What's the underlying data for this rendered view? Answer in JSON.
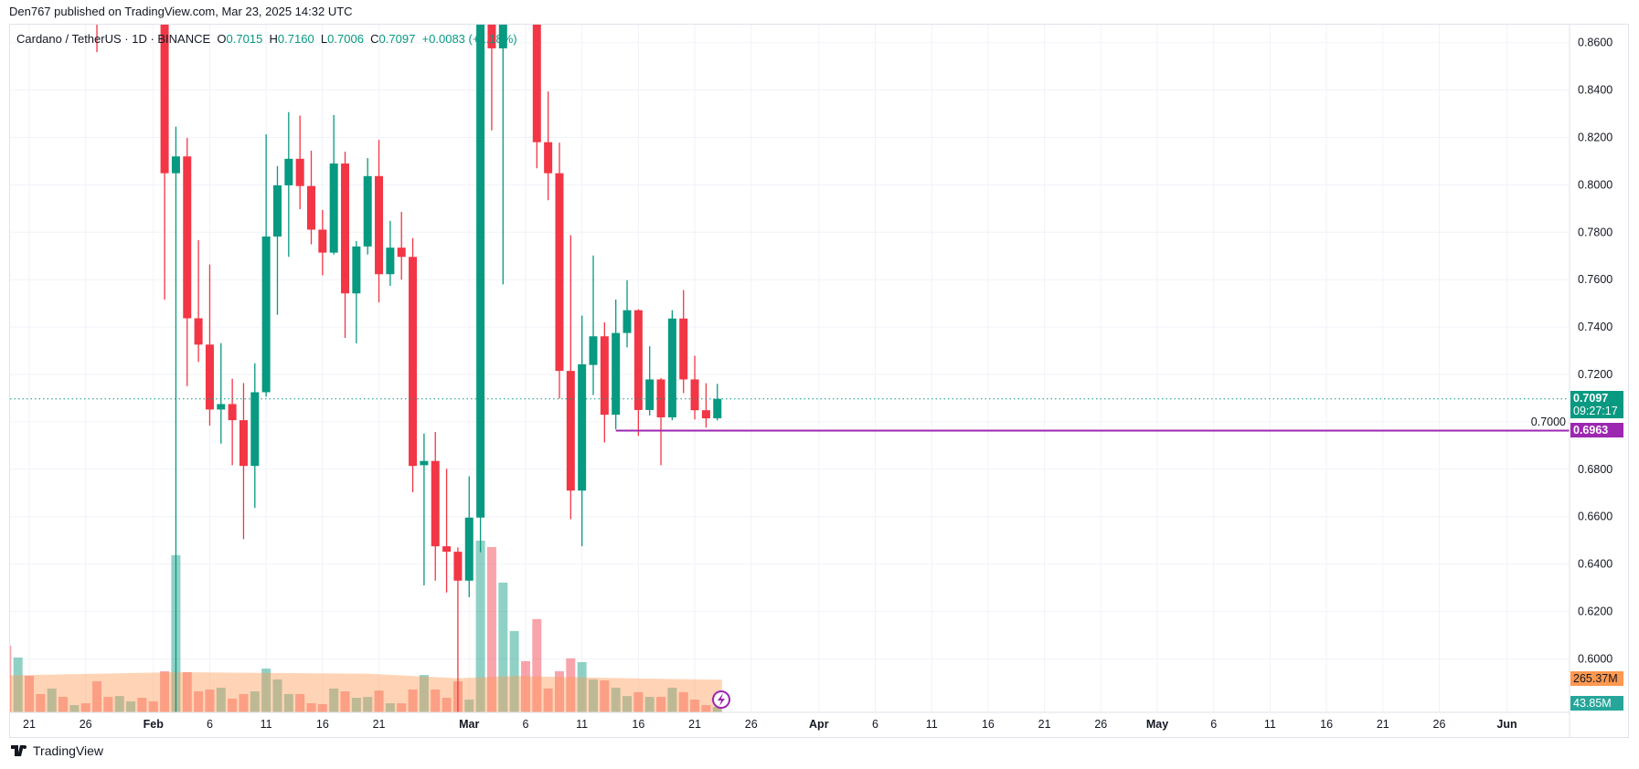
{
  "published": "Den767 published on TradingView.com, Mar 23, 2025 14:32 UTC",
  "legend": {
    "symbol": "Cardano / TetherUS · 1D · BINANCE",
    "o_label": "O",
    "o": "0.7015",
    "h_label": "H",
    "h": "0.7160",
    "l_label": "L",
    "l": "0.7006",
    "c_label": "C",
    "c": "0.7097",
    "change": "+0.0083 (+1.18%)"
  },
  "price_labels": {
    "last": "0.7097",
    "countdown": "09:27:17",
    "level": "0.6963",
    "volume_ma": "265.37M",
    "volume": "43.85M"
  },
  "footer": {
    "brand": "TradingView"
  },
  "colors": {
    "up": "#089981",
    "down": "#F23645",
    "level_line": "#9C27B0",
    "volume_ma": "#FF9850",
    "grid": "#F0F3FA"
  },
  "chart_data": {
    "type": "candlestick",
    "symbol": "ADAUSDT",
    "interval": "1D",
    "ylim": [
      0.577,
      0.868
    ],
    "grid": true,
    "y_ticks": [
      "0.6000",
      "0.6200",
      "0.6400",
      "0.6600",
      "0.6800",
      "0.7000",
      "0.7200",
      "0.7400",
      "0.7600",
      "0.7800",
      "0.8000",
      "0.8200",
      "0.8400",
      "0.8600"
    ],
    "x_ticks": [
      {
        "date": "2025-01-21",
        "label": "21"
      },
      {
        "date": "2025-01-26",
        "label": "26"
      },
      {
        "date": "2025-02-01",
        "label": "Feb",
        "major": true
      },
      {
        "date": "2025-02-06",
        "label": "6"
      },
      {
        "date": "2025-02-11",
        "label": "11"
      },
      {
        "date": "2025-02-16",
        "label": "16"
      },
      {
        "date": "2025-02-21",
        "label": "21"
      },
      {
        "date": "2025-03-01",
        "label": "Mar",
        "major": true
      },
      {
        "date": "2025-03-06",
        "label": "6"
      },
      {
        "date": "2025-03-11",
        "label": "11"
      },
      {
        "date": "2025-03-16",
        "label": "16"
      },
      {
        "date": "2025-03-21",
        "label": "21"
      },
      {
        "date": "2025-03-26",
        "label": "26"
      },
      {
        "date": "2025-04-01",
        "label": "Apr",
        "major": true
      },
      {
        "date": "2025-04-06",
        "label": "6"
      },
      {
        "date": "2025-04-11",
        "label": "11"
      },
      {
        "date": "2025-04-16",
        "label": "16"
      },
      {
        "date": "2025-04-21",
        "label": "21"
      },
      {
        "date": "2025-04-26",
        "label": "26"
      },
      {
        "date": "2025-05-01",
        "label": "May",
        "major": true
      },
      {
        "date": "2025-05-06",
        "label": "6"
      },
      {
        "date": "2025-05-11",
        "label": "11"
      },
      {
        "date": "2025-05-16",
        "label": "16"
      },
      {
        "date": "2025-05-21",
        "label": "21"
      },
      {
        "date": "2025-05-26",
        "label": "26"
      },
      {
        "date": "2025-06-01",
        "label": "Jun",
        "major": true
      }
    ],
    "candle_fields": [
      "date",
      "open",
      "high",
      "low",
      "close",
      "volume_M",
      "direction"
    ],
    "candles": [
      [
        "2025-01-19",
        null,
        null,
        null,
        null,
        543,
        "down"
      ],
      [
        "2025-01-20",
        null,
        null,
        null,
        null,
        446,
        "up"
      ],
      [
        "2025-01-21",
        null,
        null,
        null,
        null,
        297,
        "down"
      ],
      [
        "2025-01-22",
        null,
        null,
        null,
        null,
        149,
        "down"
      ],
      [
        "2025-01-23",
        null,
        null,
        null,
        null,
        194,
        "up"
      ],
      [
        "2025-01-24",
        null,
        null,
        null,
        null,
        126,
        "down"
      ],
      [
        "2025-01-25",
        null,
        null,
        null,
        null,
        59,
        "up"
      ],
      [
        "2025-01-26",
        null,
        null,
        null,
        null,
        74,
        "down"
      ],
      [
        "2025-01-27",
        null,
        null,
        0.856,
        null,
        253,
        "down"
      ],
      [
        "2025-01-28",
        null,
        null,
        null,
        null,
        126,
        "down"
      ],
      [
        "2025-01-29",
        null,
        null,
        null,
        null,
        133,
        "up"
      ],
      [
        "2025-01-30",
        null,
        null,
        null,
        null,
        90,
        "up"
      ],
      [
        "2025-01-31",
        null,
        null,
        null,
        null,
        119,
        "down"
      ],
      [
        "2025-02-01",
        null,
        null,
        null,
        null,
        90,
        "down"
      ],
      [
        "2025-02-02",
        null,
        null,
        0.7516,
        0.8049,
        335,
        "down"
      ],
      [
        "2025-02-03",
        0.8049,
        0.8246,
        0.577,
        0.812,
        1279,
        "up"
      ],
      [
        "2025-02-04",
        0.812,
        0.8198,
        0.7151,
        0.7437,
        327,
        "down"
      ],
      [
        "2025-02-05",
        0.7437,
        0.7767,
        0.7253,
        0.7326,
        171,
        "down"
      ],
      [
        "2025-02-06",
        0.7326,
        0.7664,
        0.6984,
        0.7052,
        186,
        "down"
      ],
      [
        "2025-02-07",
        0.7052,
        0.7332,
        0.6908,
        0.7075,
        201,
        "up"
      ],
      [
        "2025-02-08",
        0.7075,
        0.7182,
        0.6817,
        0.7007,
        112,
        "down"
      ],
      [
        "2025-02-09",
        0.7007,
        0.7164,
        0.6505,
        0.6814,
        149,
        "down"
      ],
      [
        "2025-02-10",
        0.6814,
        0.7247,
        0.6637,
        0.7125,
        171,
        "up"
      ],
      [
        "2025-02-11",
        0.7125,
        0.8213,
        0.7106,
        0.7782,
        356,
        "up"
      ],
      [
        "2025-02-12",
        0.7782,
        0.8079,
        0.7452,
        0.7998,
        268,
        "up"
      ],
      [
        "2025-02-13",
        0.7998,
        0.8307,
        0.7696,
        0.811,
        149,
        "up"
      ],
      [
        "2025-02-14",
        0.811,
        0.8292,
        0.7897,
        0.7995,
        149,
        "down"
      ],
      [
        "2025-02-15",
        0.7995,
        0.8144,
        0.7749,
        0.7811,
        74,
        "down"
      ],
      [
        "2025-02-16",
        0.7811,
        0.7894,
        0.7618,
        0.7714,
        67,
        "down"
      ],
      [
        "2025-02-17",
        0.7714,
        0.8295,
        0.7706,
        0.809,
        194,
        "up"
      ],
      [
        "2025-02-18",
        0.809,
        0.814,
        0.7354,
        0.7542,
        171,
        "down"
      ],
      [
        "2025-02-19",
        0.7542,
        0.7763,
        0.7331,
        0.774,
        119,
        "up"
      ],
      [
        "2025-02-20",
        0.774,
        0.8113,
        0.7706,
        0.8037,
        126,
        "up"
      ],
      [
        "2025-02-21",
        0.8037,
        0.819,
        0.7504,
        0.7623,
        178,
        "down"
      ],
      [
        "2025-02-22",
        0.7623,
        0.7848,
        0.7574,
        0.7735,
        74,
        "up"
      ],
      [
        "2025-02-23",
        0.7735,
        0.7886,
        0.76,
        0.7696,
        74,
        "down"
      ],
      [
        "2025-02-24",
        0.7696,
        0.7775,
        0.6703,
        0.6814,
        186,
        "down"
      ],
      [
        "2025-02-25",
        0.6817,
        0.6951,
        0.631,
        0.6835,
        304,
        "up"
      ],
      [
        "2025-02-26",
        0.6835,
        0.6957,
        0.633,
        0.6475,
        186,
        "down"
      ],
      [
        "2025-02-27",
        0.6475,
        0.6802,
        0.628,
        0.6452,
        119,
        "down"
      ],
      [
        "2025-02-28",
        0.6452,
        0.647,
        0.577,
        0.633,
        253,
        "down"
      ],
      [
        "2025-03-01",
        0.633,
        0.677,
        0.626,
        0.6596,
        104,
        "up"
      ],
      [
        "2025-03-02",
        0.6596,
        null,
        0.645,
        null,
        1397,
        "up"
      ],
      [
        "2025-03-03",
        null,
        null,
        0.823,
        0.8576,
        1345,
        "down"
      ],
      [
        "2025-03-04",
        0.8576,
        null,
        0.758,
        null,
        1056,
        "up"
      ],
      [
        "2025-03-05",
        null,
        null,
        null,
        null,
        662,
        "up"
      ],
      [
        "2025-03-06",
        null,
        null,
        null,
        null,
        417,
        "down"
      ],
      [
        "2025-03-07",
        null,
        null,
        0.807,
        0.818,
        759,
        "down"
      ],
      [
        "2025-03-08",
        0.818,
        0.8394,
        0.7935,
        0.8049,
        194,
        "down"
      ],
      [
        "2025-03-09",
        0.8049,
        0.8178,
        0.7098,
        0.7215,
        335,
        "down"
      ],
      [
        "2025-03-10",
        0.7215,
        0.7787,
        0.6589,
        0.671,
        439,
        "down"
      ],
      [
        "2025-03-11",
        0.671,
        0.7448,
        0.6475,
        0.7243,
        409,
        "up"
      ],
      [
        "2025-03-12",
        0.724,
        0.7702,
        0.7113,
        0.7361,
        268,
        "up"
      ],
      [
        "2025-03-13",
        0.7361,
        0.742,
        0.6913,
        0.703,
        260,
        "down"
      ],
      [
        "2025-03-14",
        0.703,
        0.7516,
        0.6969,
        0.7375,
        201,
        "up"
      ],
      [
        "2025-03-15",
        0.7375,
        0.7598,
        0.7314,
        0.7471,
        133,
        "up"
      ],
      [
        "2025-03-16",
        0.7471,
        0.7475,
        0.6941,
        0.705,
        164,
        "down"
      ],
      [
        "2025-03-17",
        0.705,
        0.7319,
        0.7027,
        0.7179,
        126,
        "up"
      ],
      [
        "2025-03-18",
        0.7179,
        0.7185,
        0.6817,
        0.7019,
        126,
        "down"
      ],
      [
        "2025-03-19",
        0.7019,
        0.7471,
        0.7007,
        0.7436,
        201,
        "up"
      ],
      [
        "2025-03-20",
        0.7436,
        0.7556,
        0.7121,
        0.7179,
        164,
        "down"
      ],
      [
        "2025-03-21",
        0.7179,
        0.7279,
        0.701,
        0.7049,
        104,
        "down"
      ],
      [
        "2025-03-22",
        0.7049,
        0.7163,
        0.6976,
        0.7015,
        59,
        "down"
      ],
      [
        "2025-03-23",
        0.7015,
        0.716,
        0.7006,
        0.7097,
        43.85,
        "up"
      ]
    ],
    "volume_ma": [
      [
        "2025-01-19",
        300
      ],
      [
        "2025-02-03",
        327
      ],
      [
        "2025-02-20",
        315
      ],
      [
        "2025-02-28",
        278
      ],
      [
        "2025-03-05",
        295
      ],
      [
        "2025-03-15",
        278
      ],
      [
        "2025-03-23",
        265.37
      ]
    ],
    "last_price": 0.7097,
    "horizontal_level": {
      "price": 0.6963,
      "from": "2025-03-14"
    }
  }
}
